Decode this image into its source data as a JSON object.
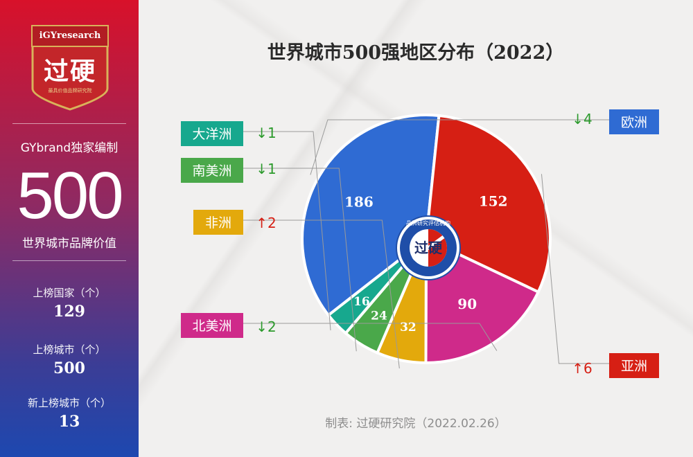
{
  "sidebar": {
    "logo_top": "iGYresearch",
    "logo_main": "过硬",
    "logo_sub": "最具价值品牌研究院",
    "brand_line": "GYbrand独家编制",
    "big_number": "500",
    "big_label": "世界城市品牌价值",
    "stats": [
      {
        "label": "上榜国家（个）",
        "value": "129"
      },
      {
        "label": "上榜城市（个）",
        "value": "500"
      },
      {
        "label": "新上榜城市（个）",
        "value": "13"
      }
    ]
  },
  "footer": "制表: 过硬研究院（2022.02.26）",
  "center_logo": {
    "main": "过硬",
    "ring": "品牌研究评估机构"
  },
  "colors": {
    "欧洲": "#2f6bd3",
    "亚洲": "#d61f14",
    "北美洲": "#cf2a8a",
    "非洲": "#e3a90c",
    "南美洲": "#4aa84a",
    "大洋洲": "#17a88e",
    "up": "#d61f14",
    "down": "#2c9a2c"
  },
  "chart_data": {
    "type": "pie",
    "title": "世界城市500强地区分布（2022）",
    "slices": [
      {
        "label": "欧洲",
        "value": 186,
        "change": "↓4",
        "direction": "down",
        "color": "#2f6bd3"
      },
      {
        "label": "亚洲",
        "value": 152,
        "change": "↑6",
        "direction": "up",
        "color": "#d61f14"
      },
      {
        "label": "北美洲",
        "value": 90,
        "change": "↓2",
        "direction": "down",
        "color": "#cf2a8a"
      },
      {
        "label": "非洲",
        "value": 32,
        "change": "↑2",
        "direction": "up",
        "color": "#e3a90c"
      },
      {
        "label": "南美洲",
        "value": 24,
        "change": "↓1",
        "direction": "down",
        "color": "#4aa84a"
      },
      {
        "label": "大洋洲",
        "value": 16,
        "change": "↓1",
        "direction": "down",
        "color": "#17a88e"
      }
    ]
  }
}
